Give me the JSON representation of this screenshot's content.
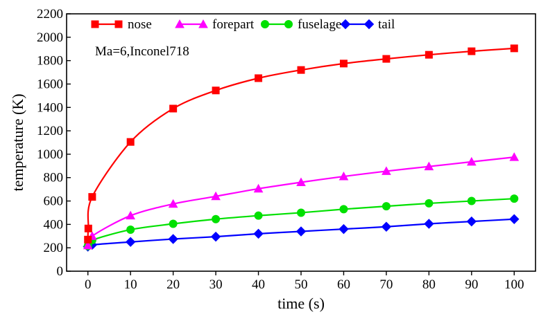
{
  "chart_data": {
    "type": "line",
    "xlabel": "time (s)",
    "ylabel": "temperature (K)",
    "xlim": [
      -5,
      105
    ],
    "ylim": [
      0,
      2200
    ],
    "xticks": [
      0,
      10,
      20,
      30,
      40,
      50,
      60,
      70,
      80,
      90,
      100
    ],
    "yticks": [
      0,
      200,
      400,
      600,
      800,
      1000,
      1200,
      1400,
      1600,
      1800,
      2000,
      2200
    ],
    "grid": false,
    "legend": "top-left",
    "annotation": "Ma=6,Inconel718",
    "series": [
      {
        "name": "nose",
        "color": "#ff0000",
        "marker": "square",
        "x": [
          0,
          0.1,
          1,
          10,
          20,
          30,
          40,
          50,
          60,
          70,
          80,
          90,
          100
        ],
        "y": [
          270,
          365,
          635,
          1105,
          1390,
          1545,
          1650,
          1720,
          1775,
          1815,
          1850,
          1880,
          1905
        ]
      },
      {
        "name": "forepart",
        "color": "#ff00ff",
        "marker": "triangle",
        "x": [
          0,
          1,
          10,
          20,
          30,
          40,
          50,
          60,
          70,
          80,
          90,
          100
        ],
        "y": [
          220,
          300,
          475,
          575,
          640,
          705,
          760,
          810,
          855,
          895,
          935,
          975
        ]
      },
      {
        "name": "fuselage",
        "color": "#00e000",
        "marker": "circle",
        "x": [
          0,
          1,
          10,
          20,
          30,
          40,
          50,
          60,
          70,
          80,
          90,
          100
        ],
        "y": [
          215,
          265,
          355,
          405,
          445,
          475,
          500,
          530,
          555,
          580,
          600,
          620
        ]
      },
      {
        "name": "tail",
        "color": "#0000ff",
        "marker": "diamond",
        "x": [
          0,
          1,
          10,
          20,
          30,
          40,
          50,
          60,
          70,
          80,
          90,
          100
        ],
        "y": [
          210,
          225,
          250,
          275,
          295,
          320,
          340,
          360,
          380,
          405,
          425,
          445
        ]
      }
    ]
  }
}
